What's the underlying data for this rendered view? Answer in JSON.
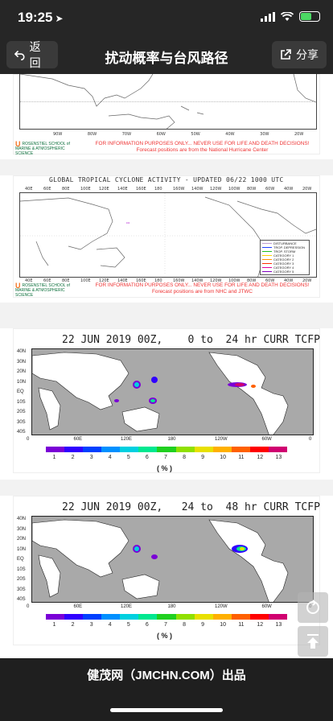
{
  "status": {
    "time": "19:25"
  },
  "nav": {
    "back_label": "返回",
    "title": "扰动概率与台风路径",
    "share_label": "分享"
  },
  "panel1": {
    "lon_labels": [
      "90W",
      "80W",
      "70W",
      "60W",
      "50W",
      "40W",
      "30W",
      "20W"
    ],
    "org": "ROSENSTIEL SCHOOL of MARINE & ATMOSPHERIC SCIENCE",
    "warn1": "FOR INFORMATION PURPOSES ONLY... NEVER USE FOR LIFE AND DEATH DECISIONS!",
    "warn2": "Forecast positions are from the National Hurricane Center"
  },
  "panel2": {
    "title": "GLOBAL TROPICAL CYCLONE ACTIVITY - UPDATED 06/22 1000 UTC",
    "lon_labels": [
      "40E",
      "60E",
      "80E",
      "100E",
      "120E",
      "140E",
      "160E",
      "180",
      "160W",
      "140W",
      "120W",
      "100W",
      "80W",
      "60W",
      "40W",
      "20W"
    ],
    "legend": [
      "DISTURBANCE",
      "TROP. DEPRESSION",
      "TROP. STORM",
      "CATEGORY 1",
      "CATEGORY 2",
      "CATEGORY 3",
      "CATEGORY 4",
      "CATEGORY 5"
    ],
    "org": "ROSENSTIEL SCHOOL of MARINE & ATMOSPHERIC SCIENCE",
    "warn1": "FOR INFORMATION PURPOSES ONLY... NEVER USE FOR LIFE AND DEATH DECISIONS!",
    "warn2": "Forecast positions are from NHC and JTWC"
  },
  "tcfp1": {
    "title": "22 JUN 2019 00Z,    0 to  24 hr CURR TCFP",
    "lat_labels": [
      "40N",
      "30N",
      "20N",
      "10N",
      "EQ",
      "10S",
      "20S",
      "30S",
      "40S"
    ],
    "lon_labels": [
      "0",
      "60E",
      "120E",
      "180",
      "120W",
      "60W",
      "0"
    ],
    "cb_labels": [
      "1",
      "2",
      "3",
      "4",
      "5",
      "6",
      "7",
      "8",
      "9",
      "10",
      "11",
      "12",
      "13"
    ],
    "unit": "( % )"
  },
  "tcfp2": {
    "title": "22 JUN 2019 00Z,   24 to  48 hr CURR TCFP",
    "lat_labels": [
      "40N",
      "30N",
      "20N",
      "10N",
      "EQ",
      "10S",
      "20S",
      "30S",
      "40S"
    ],
    "lon_labels": [
      "0",
      "60E",
      "120E",
      "180",
      "120W",
      "60W",
      "0"
    ],
    "cb_labels": [
      "1",
      "2",
      "3",
      "4",
      "5",
      "6",
      "7",
      "8",
      "9",
      "10",
      "11",
      "12",
      "13"
    ],
    "unit": "( % )"
  },
  "colors": [
    "#7a00d6",
    "#3000ff",
    "#0040ff",
    "#0090ff",
    "#00d0e0",
    "#00e890",
    "#20d020",
    "#90e000",
    "#e8e000",
    "#ffb000",
    "#ff6000",
    "#ff0000",
    "#d00070"
  ],
  "footer": {
    "text": "健茂网（JMCHN.COM）出品"
  }
}
